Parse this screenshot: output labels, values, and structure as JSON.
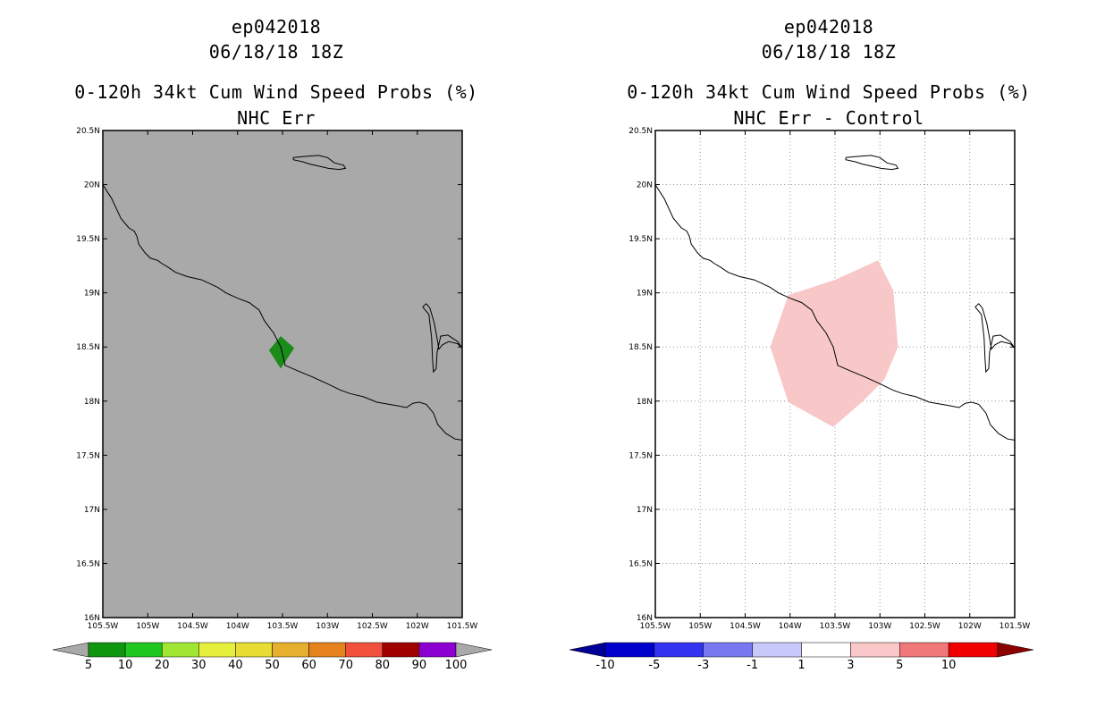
{
  "chart_data": [
    {
      "type": "heatmap",
      "title_lines": [
        "ep042018",
        "06/18/18 18Z",
        "0-120h 34kt Cum Wind Speed Probs (%)",
        "NHC Err"
      ],
      "x_ticks": [
        "105.5W",
        "105W",
        "104.5W",
        "104W",
        "103.5W",
        "103W",
        "102.5W",
        "102W",
        "101.5W"
      ],
      "y_ticks": [
        "16N",
        "16.5N",
        "17N",
        "17.5N",
        "18N",
        "18.5N",
        "19N",
        "19.5N",
        "20N",
        "20.5N"
      ],
      "xlim": [
        -105.5,
        -101.5
      ],
      "ylim": [
        16,
        20.5
      ],
      "grid": false,
      "background_color": "#a9a9a9",
      "field": [
        {
          "level": "5-10",
          "color": "#1a8c1a",
          "polygon_lonlat": [
            [
              -103.65,
              18.47
            ],
            [
              -103.52,
              18.6
            ],
            [
              -103.37,
              18.49
            ],
            [
              -103.52,
              18.3
            ]
          ]
        }
      ],
      "colorbar": {
        "labels": [
          "5",
          "10",
          "20",
          "30",
          "40",
          "50",
          "60",
          "70",
          "80",
          "90",
          "100"
        ],
        "colors": [
          "#0f960f",
          "#1ec81e",
          "#a0e632",
          "#e6f03c",
          "#e6dc32",
          "#e6af2d",
          "#e6821e",
          "#f0503c",
          "#a00000",
          "#8c00d2"
        ],
        "end_colors": [
          "#a9a9a9",
          "#a9a9a9"
        ]
      }
    },
    {
      "type": "heatmap",
      "title_lines": [
        "ep042018",
        "06/18/18 18Z",
        "0-120h 34kt Cum Wind Speed Probs (%)",
        "NHC Err - Control"
      ],
      "x_ticks": [
        "105.5W",
        "105W",
        "104.5W",
        "104W",
        "103.5W",
        "103W",
        "102.5W",
        "102W",
        "101.5W"
      ],
      "y_ticks": [
        "16N",
        "16.5N",
        "17N",
        "17.5N",
        "18N",
        "18.5N",
        "19N",
        "19.5N",
        "20N",
        "20.5N"
      ],
      "xlim": [
        -105.5,
        -101.5
      ],
      "ylim": [
        16,
        20.5
      ],
      "grid": true,
      "background_color": "#ffffff",
      "field": [
        {
          "level": "1-3",
          "color": "#f8c8c8",
          "polygon_lonlat": [
            [
              -104.02,
              18.98
            ],
            [
              -103.5,
              19.12
            ],
            [
              -103.02,
              19.3
            ],
            [
              -102.85,
              19.02
            ],
            [
              -102.8,
              18.5
            ],
            [
              -102.95,
              18.2
            ],
            [
              -103.2,
              17.99
            ],
            [
              -103.52,
              17.76
            ],
            [
              -104.02,
              17.99
            ],
            [
              -104.22,
              18.5
            ]
          ]
        }
      ],
      "colorbar": {
        "labels": [
          "-10",
          "-5",
          "-3",
          "-1",
          "1",
          "3",
          "5",
          "10"
        ],
        "colors": [
          "#0000cc",
          "#3232f0",
          "#7878f0",
          "#c8c8fa",
          "#ffffff",
          "#fac8c8",
          "#f07878",
          "#f00000"
        ],
        "end_colors": [
          "#000096",
          "#8c0000"
        ]
      }
    }
  ],
  "coastline_lonlat": {
    "mainland": [
      [
        -105.5,
        20.0
      ],
      [
        -105.4,
        19.87
      ],
      [
        -105.3,
        19.69
      ],
      [
        -105.21,
        19.6
      ],
      [
        -105.15,
        19.57
      ],
      [
        -105.12,
        19.52
      ],
      [
        -105.1,
        19.45
      ],
      [
        -105.03,
        19.37
      ],
      [
        -104.97,
        19.32
      ],
      [
        -104.89,
        19.3
      ],
      [
        -104.84,
        19.27
      ],
      [
        -104.78,
        19.24
      ],
      [
        -104.69,
        19.19
      ],
      [
        -104.56,
        19.15
      ],
      [
        -104.4,
        19.12
      ],
      [
        -104.32,
        19.09
      ],
      [
        -104.22,
        19.05
      ],
      [
        -104.13,
        19.0
      ],
      [
        -104.0,
        18.95
      ],
      [
        -103.87,
        18.91
      ],
      [
        -103.76,
        18.84
      ],
      [
        -103.7,
        18.74
      ],
      [
        -103.6,
        18.63
      ],
      [
        -103.52,
        18.5
      ],
      [
        -103.49,
        18.4
      ],
      [
        -103.47,
        18.33
      ],
      [
        -103.33,
        18.28
      ],
      [
        -103.16,
        18.22
      ],
      [
        -103.0,
        18.16
      ],
      [
        -102.85,
        18.1
      ],
      [
        -102.75,
        18.07
      ],
      [
        -102.6,
        18.04
      ],
      [
        -102.45,
        17.99
      ],
      [
        -102.24,
        17.96
      ],
      [
        -102.12,
        17.94
      ],
      [
        -102.05,
        17.98
      ],
      [
        -101.98,
        17.99
      ],
      [
        -101.9,
        17.97
      ],
      [
        -101.82,
        17.89
      ],
      [
        -101.77,
        17.78
      ],
      [
        -101.68,
        17.7
      ],
      [
        -101.58,
        17.65
      ],
      [
        -101.5,
        17.64
      ]
    ],
    "laguna": [
      [
        -101.94,
        18.87
      ],
      [
        -101.9,
        18.9
      ],
      [
        -101.86,
        18.86
      ],
      [
        -101.81,
        18.72
      ],
      [
        -101.78,
        18.58
      ],
      [
        -101.76,
        18.48
      ],
      [
        -101.72,
        18.52
      ],
      [
        -101.65,
        18.55
      ],
      [
        -101.55,
        18.53
      ],
      [
        -101.5,
        18.49
      ],
      [
        -101.55,
        18.55
      ],
      [
        -101.66,
        18.61
      ],
      [
        -101.74,
        18.6
      ],
      [
        -101.78,
        18.45
      ],
      [
        -101.79,
        18.3
      ],
      [
        -101.82,
        18.27
      ],
      [
        -101.83,
        18.39
      ],
      [
        -101.84,
        18.58
      ],
      [
        -101.87,
        18.8
      ],
      [
        -101.94,
        18.87
      ]
    ],
    "island": [
      [
        -103.38,
        20.25
      ],
      [
        -103.26,
        20.26
      ],
      [
        -103.1,
        20.27
      ],
      [
        -103.0,
        20.25
      ],
      [
        -102.92,
        20.2
      ],
      [
        -102.82,
        20.18
      ],
      [
        -102.8,
        20.15
      ],
      [
        -102.87,
        20.14
      ],
      [
        -102.99,
        20.15
      ],
      [
        -103.09,
        20.17
      ],
      [
        -103.2,
        20.19
      ],
      [
        -103.27,
        20.21
      ],
      [
        -103.38,
        20.23
      ],
      [
        -103.38,
        20.25
      ]
    ]
  },
  "colors": {
    "line": "#000000",
    "grid": "#999999"
  }
}
